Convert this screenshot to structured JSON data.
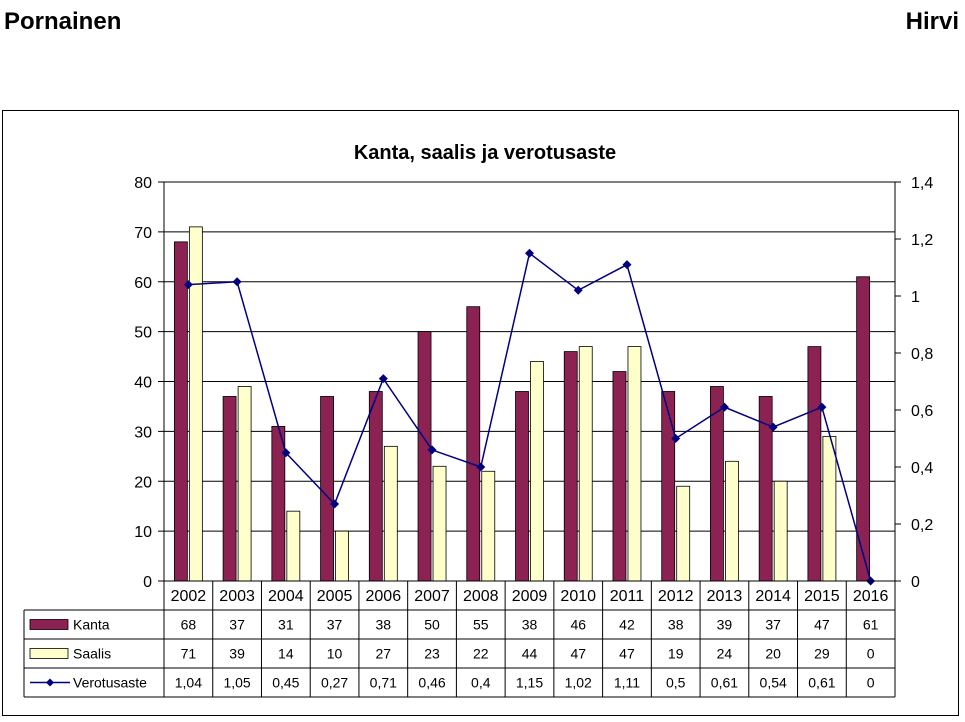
{
  "header": {
    "left": "Pornainen",
    "right": "Hirvi"
  },
  "colors": {
    "kanta": "#8b2252",
    "saalis": "#ffffcc",
    "verotusaste": "#000080",
    "grid": "#000000"
  },
  "chart_data": {
    "type": "bar",
    "title": "Kanta, saalis ja verotusaste",
    "categories": [
      "2002",
      "2003",
      "2004",
      "2005",
      "2006",
      "2007",
      "2008",
      "2009",
      "2010",
      "2011",
      "2012",
      "2013",
      "2014",
      "2015",
      "2016"
    ],
    "series": [
      {
        "name": "Kanta",
        "kind": "bar",
        "axis": "left",
        "values": [
          68,
          37,
          31,
          37,
          38,
          50,
          55,
          38,
          46,
          42,
          38,
          39,
          37,
          47,
          61
        ],
        "labels": [
          "68",
          "37",
          "31",
          "37",
          "38",
          "50",
          "55",
          "38",
          "46",
          "42",
          "38",
          "39",
          "37",
          "47",
          "61"
        ]
      },
      {
        "name": "Saalis",
        "kind": "bar",
        "axis": "left",
        "values": [
          71,
          39,
          14,
          10,
          27,
          23,
          22,
          44,
          47,
          47,
          19,
          24,
          20,
          29,
          0
        ],
        "labels": [
          "71",
          "39",
          "14",
          "10",
          "27",
          "23",
          "22",
          "44",
          "47",
          "47",
          "19",
          "24",
          "20",
          "29",
          "0"
        ]
      },
      {
        "name": "Verotusaste",
        "kind": "line",
        "axis": "right",
        "values": [
          1.04,
          1.05,
          0.45,
          0.27,
          0.71,
          0.46,
          0.4,
          1.15,
          1.02,
          1.11,
          0.5,
          0.61,
          0.54,
          0.61,
          0
        ],
        "labels": [
          "1,04",
          "1,05",
          "0,45",
          "0,27",
          "0,71",
          "0,46",
          "0,4",
          "1,15",
          "1,02",
          "1,11",
          "0,5",
          "0,61",
          "0,54",
          "0,61",
          "0"
        ]
      }
    ],
    "ylim_left": [
      0,
      80
    ],
    "ylim_right": [
      0,
      1.4
    ],
    "left_ticks": [
      "0",
      "10",
      "20",
      "30",
      "40",
      "50",
      "60",
      "70",
      "80"
    ],
    "right_ticks": [
      "0",
      "0,2",
      "0,4",
      "0,6",
      "0,8",
      "1",
      "1,2",
      "1,4"
    ],
    "grid": true,
    "legend": "data-table"
  }
}
